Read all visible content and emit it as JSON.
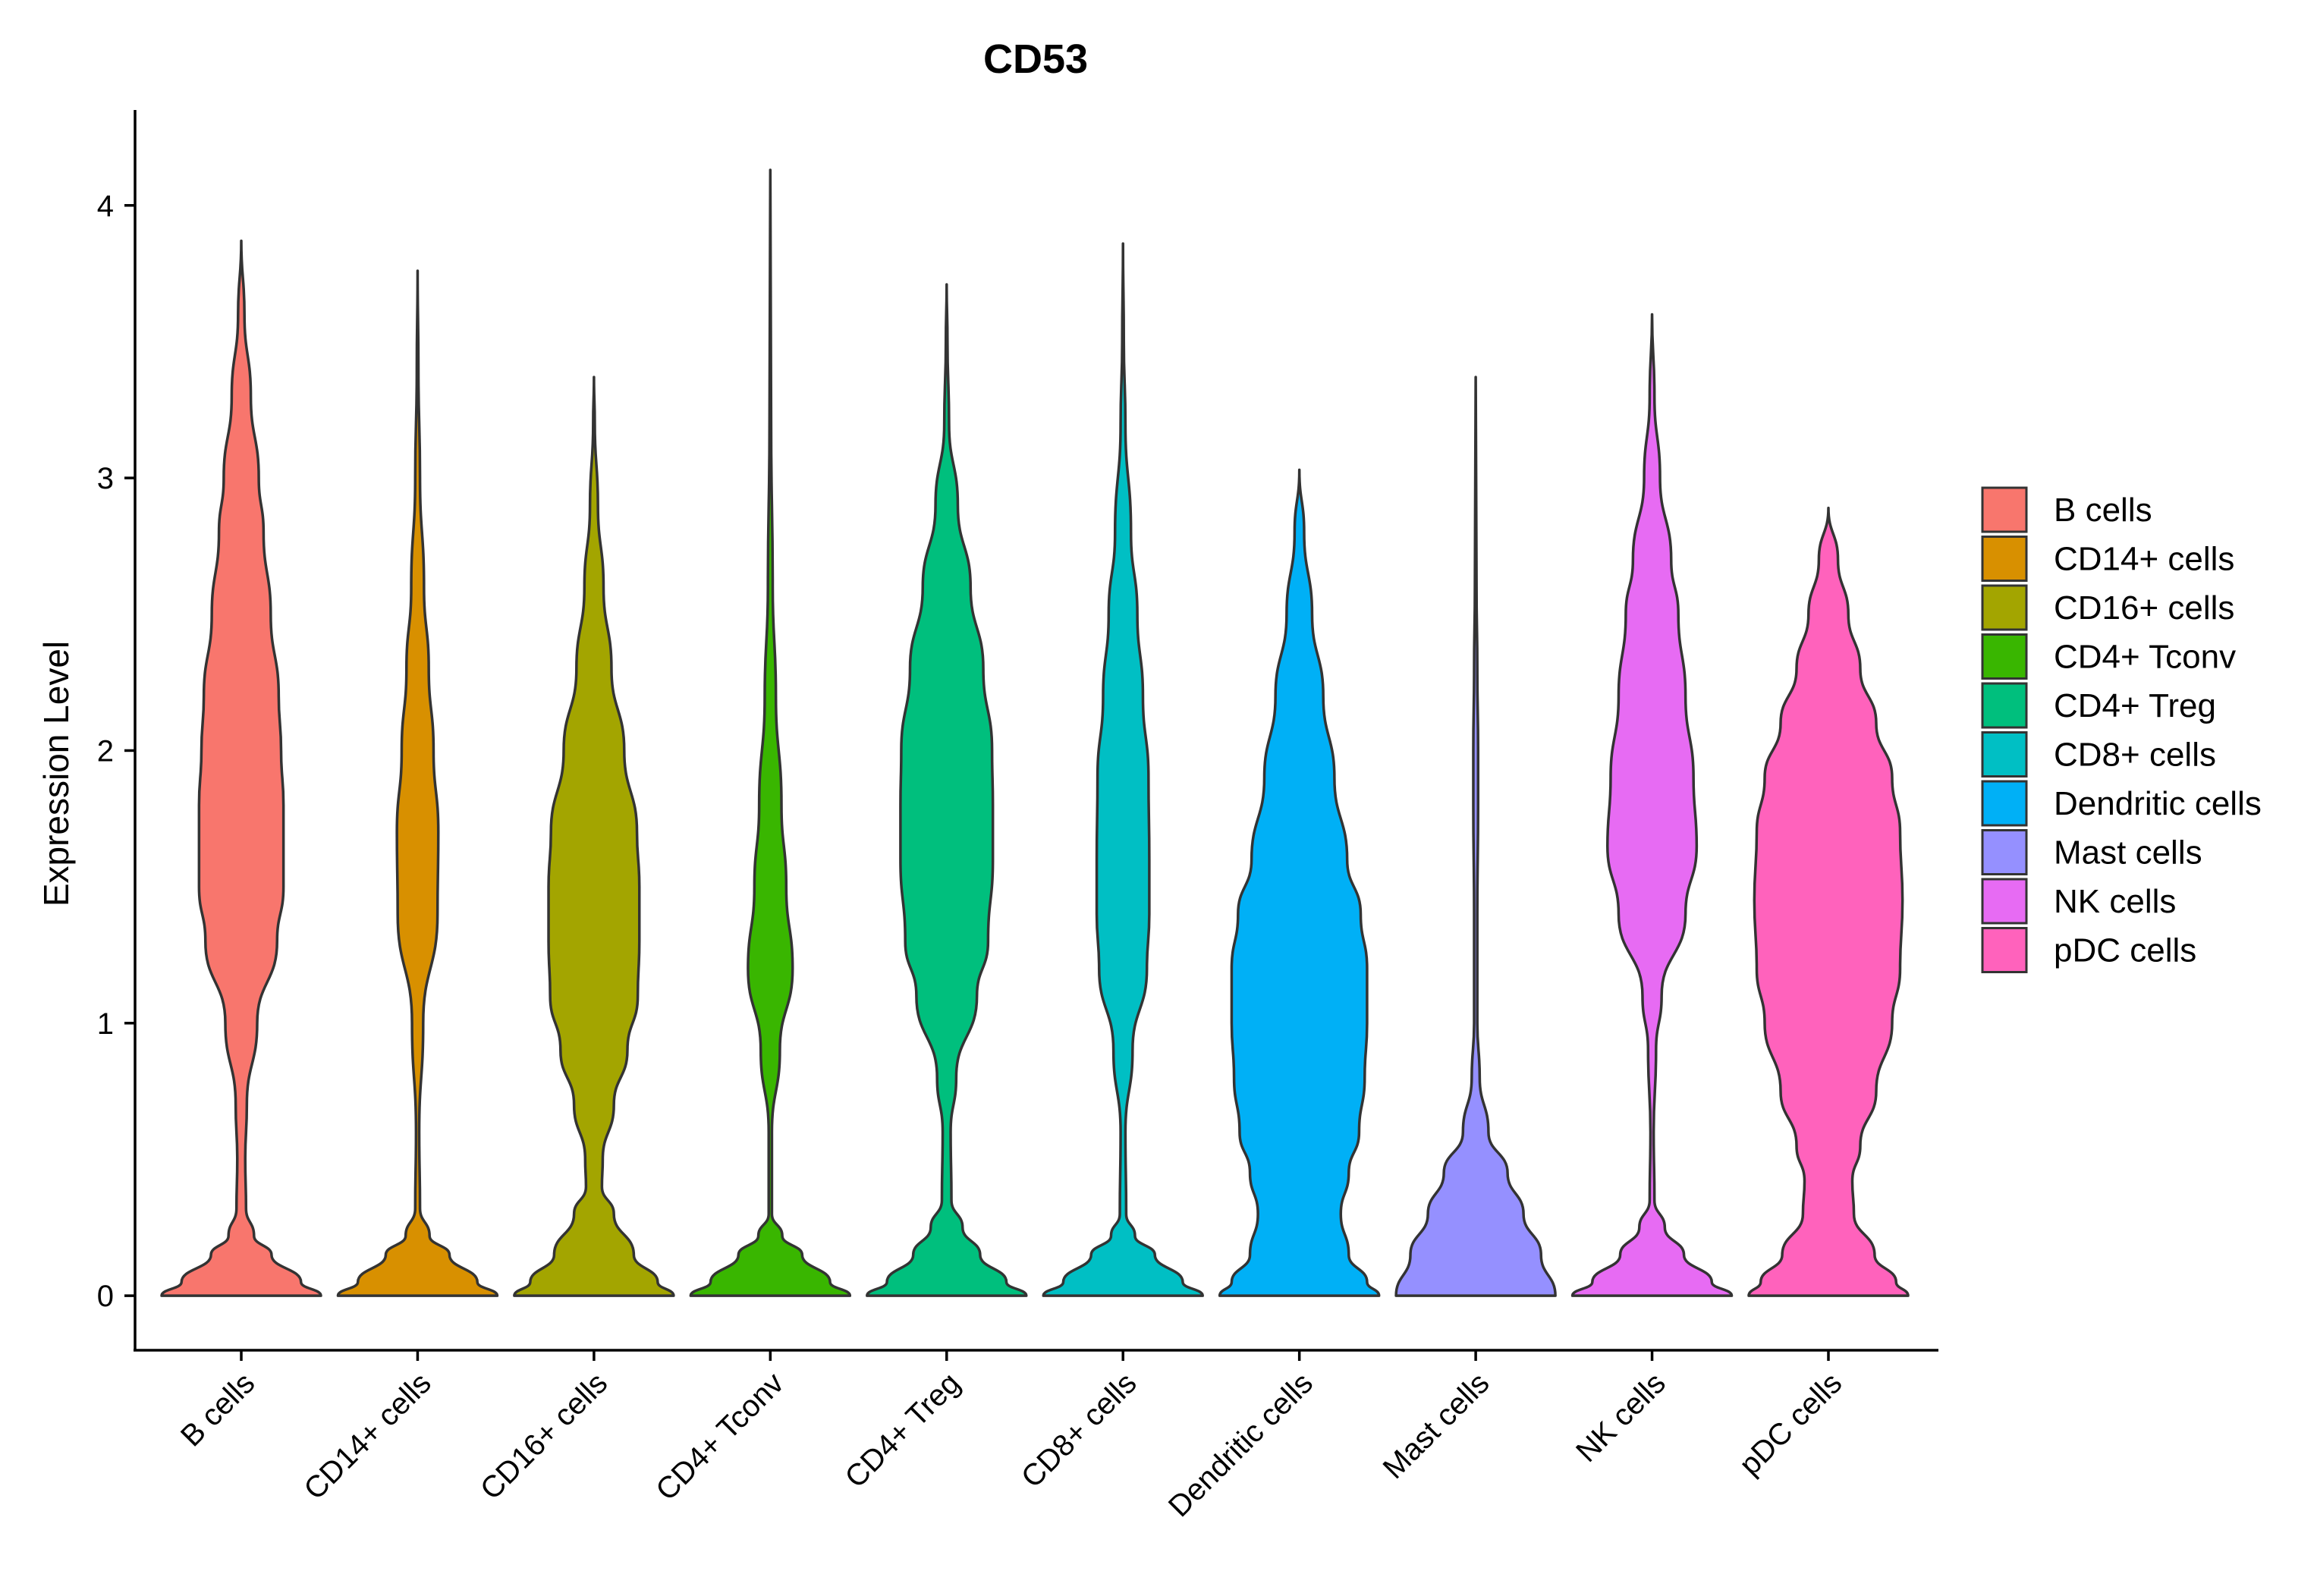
{
  "chart_data": {
    "type": "violin",
    "title": "CD53",
    "xlabel": "",
    "ylabel": "Expression Level",
    "ylim": [
      -0.2,
      4.35
    ],
    "yticks": [
      0,
      1,
      2,
      3,
      4
    ],
    "legend_position": "right",
    "categories": [
      "B cells",
      "CD14+ cells",
      "CD16+ cells",
      "CD4+ Tconv",
      "CD4+ Treg",
      "CD8+ cells",
      "Dendritic cells",
      "Mast cells",
      "NK cells",
      "pDC cells"
    ],
    "colors": [
      "#F8766D",
      "#D89000",
      "#A3A500",
      "#39B600",
      "#00BF7D",
      "#00BFC4",
      "#00B0F6",
      "#9590FF",
      "#E76BF3",
      "#FF62BC"
    ],
    "max_values": [
      3.87,
      3.76,
      3.37,
      4.13,
      3.71,
      3.86,
      3.03,
      3.37,
      3.6,
      2.89
    ],
    "density_profiles": [
      [
        [
          0,
          1.0
        ],
        [
          0.05,
          0.75
        ],
        [
          0.15,
          0.38
        ],
        [
          0.22,
          0.16
        ],
        [
          0.32,
          0.06
        ],
        [
          0.5,
          0.05
        ],
        [
          0.7,
          0.07
        ],
        [
          1.0,
          0.2
        ],
        [
          1.3,
          0.45
        ],
        [
          1.5,
          0.53
        ],
        [
          1.8,
          0.53
        ],
        [
          2.0,
          0.5
        ],
        [
          2.2,
          0.47
        ],
        [
          2.5,
          0.37
        ],
        [
          2.8,
          0.28
        ],
        [
          3.0,
          0.22
        ],
        [
          3.3,
          0.12
        ],
        [
          3.6,
          0.04
        ],
        [
          3.87,
          0
        ]
      ],
      [
        [
          0,
          1.0
        ],
        [
          0.05,
          0.75
        ],
        [
          0.15,
          0.4
        ],
        [
          0.22,
          0.15
        ],
        [
          0.32,
          0.03
        ],
        [
          0.6,
          0.02
        ],
        [
          1.0,
          0.07
        ],
        [
          1.4,
          0.25
        ],
        [
          1.7,
          0.26
        ],
        [
          2.0,
          0.2
        ],
        [
          2.3,
          0.14
        ],
        [
          2.6,
          0.08
        ],
        [
          3.0,
          0.03
        ],
        [
          3.4,
          0.01
        ],
        [
          3.76,
          0
        ]
      ],
      [
        [
          0,
          1.0
        ],
        [
          0.05,
          0.8
        ],
        [
          0.15,
          0.5
        ],
        [
          0.3,
          0.25
        ],
        [
          0.4,
          0.1
        ],
        [
          0.5,
          0.11
        ],
        [
          0.7,
          0.25
        ],
        [
          0.9,
          0.42
        ],
        [
          1.1,
          0.55
        ],
        [
          1.3,
          0.57
        ],
        [
          1.5,
          0.57
        ],
        [
          1.7,
          0.54
        ],
        [
          2.0,
          0.38
        ],
        [
          2.3,
          0.22
        ],
        [
          2.6,
          0.12
        ],
        [
          2.9,
          0.05
        ],
        [
          3.2,
          0.01
        ],
        [
          3.37,
          0
        ]
      ],
      [
        [
          0,
          1.0
        ],
        [
          0.05,
          0.75
        ],
        [
          0.15,
          0.4
        ],
        [
          0.22,
          0.15
        ],
        [
          0.3,
          0.02
        ],
        [
          0.6,
          0.02
        ],
        [
          0.9,
          0.12
        ],
        [
          1.2,
          0.28
        ],
        [
          1.5,
          0.2
        ],
        [
          1.8,
          0.14
        ],
        [
          2.2,
          0.07
        ],
        [
          2.6,
          0.03
        ],
        [
          3.2,
          0.01
        ],
        [
          4.13,
          0
        ]
      ],
      [
        [
          0,
          1.0
        ],
        [
          0.05,
          0.75
        ],
        [
          0.15,
          0.42
        ],
        [
          0.25,
          0.2
        ],
        [
          0.35,
          0.06
        ],
        [
          0.6,
          0.05
        ],
        [
          0.8,
          0.12
        ],
        [
          1.1,
          0.38
        ],
        [
          1.3,
          0.52
        ],
        [
          1.6,
          0.58
        ],
        [
          1.8,
          0.58
        ],
        [
          2.0,
          0.57
        ],
        [
          2.3,
          0.46
        ],
        [
          2.6,
          0.3
        ],
        [
          2.9,
          0.14
        ],
        [
          3.2,
          0.03
        ],
        [
          3.5,
          0.01
        ],
        [
          3.71,
          0
        ]
      ],
      [
        [
          0,
          1.0
        ],
        [
          0.05,
          0.75
        ],
        [
          0.15,
          0.4
        ],
        [
          0.22,
          0.15
        ],
        [
          0.3,
          0.04
        ],
        [
          0.6,
          0.03
        ],
        [
          0.9,
          0.12
        ],
        [
          1.2,
          0.3
        ],
        [
          1.4,
          0.33
        ],
        [
          1.6,
          0.33
        ],
        [
          1.9,
          0.32
        ],
        [
          2.2,
          0.25
        ],
        [
          2.5,
          0.18
        ],
        [
          2.8,
          0.1
        ],
        [
          3.2,
          0.03
        ],
        [
          3.5,
          0.01
        ],
        [
          3.86,
          0
        ]
      ],
      [
        [
          0,
          1.0
        ],
        [
          0.05,
          0.85
        ],
        [
          0.15,
          0.62
        ],
        [
          0.3,
          0.52
        ],
        [
          0.45,
          0.62
        ],
        [
          0.6,
          0.75
        ],
        [
          0.8,
          0.82
        ],
        [
          1.0,
          0.85
        ],
        [
          1.2,
          0.85
        ],
        [
          1.4,
          0.77
        ],
        [
          1.6,
          0.6
        ],
        [
          1.9,
          0.44
        ],
        [
          2.2,
          0.3
        ],
        [
          2.5,
          0.16
        ],
        [
          2.8,
          0.06
        ],
        [
          3.03,
          0
        ]
      ],
      [
        [
          0,
          1.0
        ],
        [
          0.15,
          0.82
        ],
        [
          0.3,
          0.6
        ],
        [
          0.45,
          0.4
        ],
        [
          0.6,
          0.16
        ],
        [
          0.8,
          0.05
        ],
        [
          1.0,
          0.02
        ],
        [
          1.4,
          0.02
        ],
        [
          1.8,
          0.03
        ],
        [
          2.0,
          0.03
        ],
        [
          2.3,
          0.02
        ],
        [
          2.6,
          0.01
        ],
        [
          3.0,
          0.005
        ],
        [
          3.37,
          0
        ]
      ],
      [
        [
          0,
          1.0
        ],
        [
          0.05,
          0.75
        ],
        [
          0.15,
          0.4
        ],
        [
          0.25,
          0.16
        ],
        [
          0.35,
          0.03
        ],
        [
          0.6,
          0.02
        ],
        [
          0.9,
          0.05
        ],
        [
          1.1,
          0.12
        ],
        [
          1.4,
          0.42
        ],
        [
          1.65,
          0.56
        ],
        [
          1.9,
          0.52
        ],
        [
          2.2,
          0.42
        ],
        [
          2.5,
          0.33
        ],
        [
          2.7,
          0.24
        ],
        [
          3.0,
          0.1
        ],
        [
          3.3,
          0.03
        ],
        [
          3.6,
          0
        ]
      ],
      [
        [
          0,
          1.0
        ],
        [
          0.05,
          0.85
        ],
        [
          0.15,
          0.58
        ],
        [
          0.3,
          0.32
        ],
        [
          0.42,
          0.3
        ],
        [
          0.55,
          0.4
        ],
        [
          0.75,
          0.6
        ],
        [
          1.0,
          0.8
        ],
        [
          1.2,
          0.9
        ],
        [
          1.45,
          0.93
        ],
        [
          1.7,
          0.9
        ],
        [
          1.9,
          0.8
        ],
        [
          2.1,
          0.6
        ],
        [
          2.3,
          0.4
        ],
        [
          2.5,
          0.25
        ],
        [
          2.7,
          0.12
        ],
        [
          2.89,
          0
        ]
      ]
    ]
  }
}
